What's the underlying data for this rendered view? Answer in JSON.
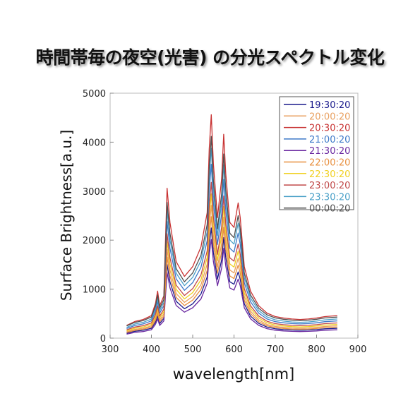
{
  "title": "時間帯毎の夜空(光害) の分光スペクトル変化",
  "chart_data": {
    "type": "line",
    "xlabel": "wavelength[nm]",
    "ylabel": "Surface Brightness[a.u.]",
    "xlim": [
      300,
      900
    ],
    "ylim": [
      0,
      5000
    ],
    "xticks": [
      "300",
      "400",
      "500",
      "600",
      "700",
      "800",
      "900"
    ],
    "yticks": [
      "0",
      "1000",
      "2000",
      "3000",
      "4000",
      "5000"
    ],
    "legend_position": "top-right",
    "grid": false,
    "series": [
      {
        "name": "19:30:20",
        "color": "#1a1a8c",
        "scale": 0.5,
        "offset": 0
      },
      {
        "name": "20:00:20",
        "color": "#e8a060",
        "scale": 0.6,
        "offset": 10
      },
      {
        "name": "20:30:20",
        "color": "#c83232",
        "scale": 1.0,
        "offset": 60
      },
      {
        "name": "21:00:20",
        "color": "#3c78c8",
        "scale": 0.78,
        "offset": 40
      },
      {
        "name": "21:30:20",
        "color": "#6a28a0",
        "scale": 0.45,
        "offset": -10
      },
      {
        "name": "22:00:20",
        "color": "#e89040",
        "scale": 0.55,
        "offset": 5
      },
      {
        "name": "22:30:20",
        "color": "#f0d020",
        "scale": 0.65,
        "offset": 20
      },
      {
        "name": "23:00:20",
        "color": "#c04848",
        "scale": 0.7,
        "offset": 30
      },
      {
        "name": "23:30:20",
        "color": "#4aa0c8",
        "scale": 0.85,
        "offset": 50
      },
      {
        "name": "00:00:20",
        "color": "#505050",
        "scale": 0.9,
        "offset": 70
      }
    ],
    "base_x": [
      340,
      360,
      380,
      395,
      400,
      410,
      415,
      420,
      430,
      435,
      438,
      445,
      460,
      480,
      500,
      520,
      535,
      540,
      545,
      550,
      560,
      570,
      575,
      580,
      590,
      600,
      610,
      615,
      625,
      640,
      660,
      680,
      700,
      720,
      740,
      760,
      780,
      800,
      820,
      850
    ],
    "base_y": [
      200,
      280,
      320,
      380,
      400,
      650,
      900,
      600,
      800,
      2200,
      3000,
      2300,
      1500,
      1200,
      1400,
      1800,
      2500,
      3800,
      4500,
      3500,
      2400,
      3200,
      4100,
      3300,
      2300,
      2200,
      2700,
      2400,
      1400,
      900,
      600,
      450,
      380,
      350,
      330,
      320,
      330,
      350,
      380,
      400
    ]
  }
}
